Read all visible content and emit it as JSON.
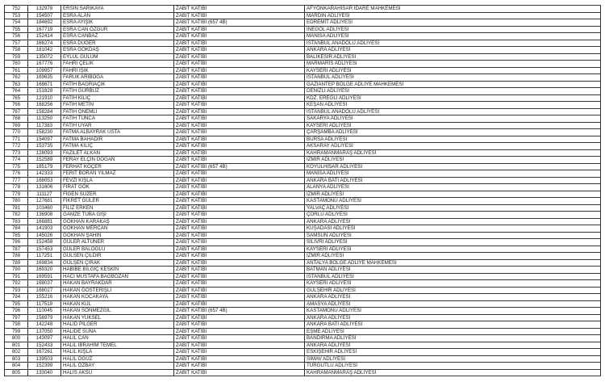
{
  "rows": [
    [
      "752",
      "132978",
      "ERSİN SARIKAYA",
      "ZABIT KATİBİ",
      "AFYONKARAHİSAR İDARE MAHKEMESİ"
    ],
    [
      "753",
      "154507",
      "ESRA ALAN",
      "ZABIT KATİBİ",
      "MARDİN ADLİYESİ"
    ],
    [
      "754",
      "184692",
      "ESRA AYIŞIK",
      "ZABIT KATİBİ (657 4B)",
      "EDREMİT ADLİYESİ"
    ],
    [
      "755",
      "167719",
      "ESRA CAN ÖZGÜR",
      "ZABIT KATİBİ",
      "İNEGÖL ADLİYESİ"
    ],
    [
      "756",
      "152414",
      "ESRA CANBAZ",
      "ZABIT KATİBİ",
      "MANİSA ADLİYESİ"
    ],
    [
      "757",
      "166274",
      "ESRA DÜĞER",
      "ZABIT KATİBİ",
      "İSTANBUL ANADOLU ADLİYESİ"
    ],
    [
      "758",
      "181042",
      "ESRA GÖKDAŞ",
      "ZABIT KATİBİ",
      "ANKARA ADLİYESİ"
    ],
    [
      "759",
      "135072",
      "EYLÜL GÜLÜM",
      "ZABIT KATİBİ",
      "BALIKESİR ADLİYESİ"
    ],
    [
      "760",
      "167776",
      "FAHRİ ÇELİK",
      "ZABIT KATİBİ",
      "MARMARİS ADLİYESİ"
    ],
    [
      "761",
      "109957",
      "FAHRİ IŞIK",
      "ZABIT KATİBİ",
      "KAYSERİ ADLİYESİ"
    ],
    [
      "762",
      "169635",
      "FARUK ARIBOĞA",
      "ZABIT KATİBİ",
      "İSTANBUL ADLİYESİ"
    ],
    [
      "763",
      "168671",
      "FATİH BAĞRIAÇIK",
      "ZABIT KATİBİ",
      "GAZİANTEP BÖLGE ADLİYE MAHKEMESİ"
    ],
    [
      "764",
      "151828",
      "FATİH GÜRBÜZ",
      "ZABIT KATİBİ",
      "DENİZLİ ADLİYESİ"
    ],
    [
      "765",
      "121910",
      "FATİH KILIÇ",
      "ZABIT KATİBİ",
      "KDZ. EREĞLİ ADLİYESİ"
    ],
    [
      "766",
      "168256",
      "FATİH METİN",
      "ZABIT KATİBİ",
      "KEŞAN ADLİYESİ"
    ],
    [
      "767",
      "158284",
      "FATİH ÖNEMLİ",
      "ZABIT KATİBİ",
      "İSTANBUL ANADOLU ADLİYESİ"
    ],
    [
      "768",
      "113250",
      "FATİH TUNCA",
      "ZABIT KATİBİ",
      "SAKARYA ADLİYESİ"
    ],
    [
      "769",
      "117383",
      "FATİH UYAR",
      "ZABIT KATİBİ",
      "KAYSERİ ADLİYESİ"
    ],
    [
      "770",
      "158230",
      "FATMA ALBAYRAK USTA",
      "ZABIT KATİBİ",
      "ÇARŞAMBA ADLİYESİ"
    ],
    [
      "771",
      "154097",
      "FATMA BAHADIR",
      "ZABIT KATİBİ",
      "BURSA ADLİYESİ"
    ],
    [
      "772",
      "153735",
      "FATMA KILIÇ",
      "ZABIT KATİBİ",
      "AKSARAY ADLİYESİ"
    ],
    [
      "773",
      "128093",
      "FAZİLET ALKAN",
      "ZABIT KATİBİ",
      "KAHRAMANMARAŞ ADLİYESİ"
    ],
    [
      "774",
      "152589",
      "FERAY ELÇİN DOĞAN",
      "ZABIT KATİBİ",
      "İZMİR ADLİYESİ"
    ],
    [
      "775",
      "185179",
      "FERHAT KOÇER",
      "ZABIT KATİBİ (657 4B)",
      "KOYULHİSAR ADLİYESİ"
    ],
    [
      "776",
      "142333",
      "FERİT BORAN YILMAZ",
      "ZABIT KATİBİ",
      "MANİSA ADLİYESİ"
    ],
    [
      "777",
      "168053",
      "FEVZİ KIŞLA",
      "ZABIT KATİBİ",
      "ANKARA BATI ADLİYESİ"
    ],
    [
      "778",
      "131606",
      "FIRAT GÖK",
      "ZABIT KATİBİ",
      "ALANYA ADLİYESİ"
    ],
    [
      "779",
      "111127",
      "FİGEN SÜZER",
      "ZABIT KATİBİ",
      "İZMİR ADLİYESİ"
    ],
    [
      "780",
      "127681",
      "FİKRET GÜLER",
      "ZABIT KATİBİ",
      "KASTAMONU ADLİYESİ"
    ],
    [
      "781",
      "103460",
      "FİLİZ ERKEN",
      "ZABIT KATİBİ",
      "YALVAÇ ADLİYESİ"
    ],
    [
      "782",
      "136908",
      "GAMZE TUBA GİŞİ",
      "ZABIT KATİBİ",
      "ÇORLU ADLİYESİ"
    ],
    [
      "783",
      "166881",
      "GÖKHAN KARAKAŞ",
      "ZABIT KATİBİ",
      "ANKARA ADLİYESİ"
    ],
    [
      "784",
      "141903",
      "GÖKHAN MERCAN",
      "ZABIT KATİBİ",
      "KUŞADASI ADLİYESİ"
    ],
    [
      "785",
      "145026",
      "GÖKHAN ŞAHİN",
      "ZABIT KATİBİ",
      "SAMSUN ADLİYESİ"
    ],
    [
      "786",
      "152458",
      "GÜLER ALTUNER",
      "ZABIT KATİBİ",
      "SİLİVRİ ADLİYESİ"
    ],
    [
      "787",
      "157453",
      "GÜLER BALOĞLU",
      "ZABIT KATİBİ",
      "KAYSERİ ADLİYESİ"
    ],
    [
      "788",
      "117251",
      "GÜLSEN ÇILDIR",
      "ZABIT KATİBİ",
      "İZMİR ADLİYESİ"
    ],
    [
      "789",
      "169834",
      "GÜLŞEN ÇIRAK",
      "ZABIT KATİBİ",
      "ANTALYA BÖLGE ADLİYE MAHKEMESİ"
    ],
    [
      "790",
      "169320",
      "HABİBE BİLGİÇ KESKİN",
      "ZABIT KATİBİ",
      "BATMAN ADLİYESİ"
    ],
    [
      "791",
      "169591",
      "HACI MUSTAFA BAĞBOZAN",
      "ZABIT KATİBİ",
      "İSTANBUL ADLİYESİ"
    ],
    [
      "792",
      "168037",
      "HAKAN BAYRAKDAR",
      "ZABIT KATİBİ",
      "KAYSERİ ADLİYESİ"
    ],
    [
      "793",
      "168027",
      "HAKAN GÖSTERİŞLİ",
      "ZABIT KATİBİ",
      "GÜLŞEHİR ADLİYESİ"
    ],
    [
      "794",
      "155216",
      "HAKAN KOCAKAYA",
      "ZABIT KATİBİ",
      "ANKARA ADLİYESİ"
    ],
    [
      "795",
      "117519",
      "HAKAN KUL",
      "ZABIT KATİBİ",
      "AMASYA ADLİYESİ"
    ],
    [
      "796",
      "110045",
      "HAKAN SÖNMEZGİL",
      "ZABIT KATİBİ (657 4B)",
      "KASTAMONU ADLİYESİ"
    ],
    [
      "797",
      "156979",
      "HAKAN YÜKSEL",
      "ZABIT KATİBİ",
      "ANKARA ADLİYESİ"
    ],
    [
      "798",
      "142248",
      "HALİD PİLGER",
      "ZABIT KATİBİ",
      "ANKARA BATI ADLİYESİ"
    ],
    [
      "799",
      "137050",
      "HALİDE SUNA",
      "ZABIT KATİBİ",
      "EŞME ADLİYESİ"
    ],
    [
      "800",
      "143097",
      "HALİL CAN",
      "ZABIT KATİBİ",
      "BANDIRMA ADLİYESİ"
    ],
    [
      "801",
      "152433",
      "HALİL İBRAHİM TEMEL",
      "ZABIT KATİBİ",
      "ANKARA ADLİYESİ"
    ],
    [
      "802",
      "167261",
      "HALİL KIŞLA",
      "ZABIT KATİBİ",
      "ESKİŞEHİR ADLİYESİ"
    ],
    [
      "803",
      "139503",
      "HALİL OĞUZ",
      "ZABIT KATİBİ",
      "SİMAV ADLİYESİ"
    ],
    [
      "804",
      "152399",
      "HALİL ÖZBAY",
      "ZABIT KATİBİ",
      "TURGUTLU ADLİYESİ"
    ],
    [
      "805",
      "133040",
      "HALİS AKSU",
      "ZABIT KATİBİ",
      "KAHRAMANMARAŞ ADLİYESİ"
    ]
  ]
}
